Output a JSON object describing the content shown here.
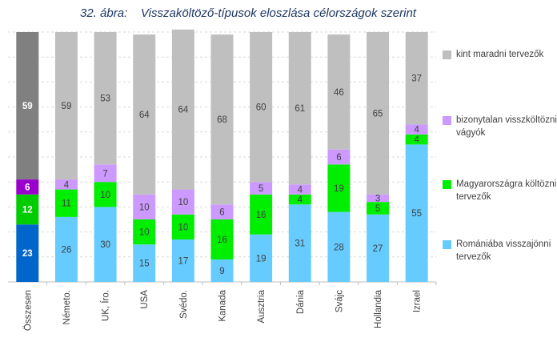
{
  "chart_data": {
    "type": "bar",
    "stacked": true,
    "title": "32. ábra:    Visszaköltöző-típusok eloszlása célországok szerint",
    "categories": [
      "Összesen",
      "Németo.",
      "UK, Íro.",
      "USA",
      "Svédo.",
      "Kanada",
      "Ausztria",
      "Dánia",
      "Svájc",
      "Hollandia",
      "Izrael"
    ],
    "series": [
      {
        "name": "Romániába visszajönni tervezők",
        "color": "#66ccff",
        "total_color": "#0066cc",
        "values": [
          23,
          26,
          30,
          15,
          17,
          9,
          19,
          31,
          28,
          27,
          55
        ]
      },
      {
        "name": "Magyarországra költözni tervezők",
        "color": "#00ee00",
        "total_color": "#00cc00",
        "values": [
          12,
          11,
          10,
          10,
          10,
          16,
          16,
          4,
          19,
          5,
          4
        ]
      },
      {
        "name": "bizonytalan visszköltözni vágyók",
        "color": "#cc99ff",
        "total_color": "#9900cc",
        "values": [
          6,
          4,
          7,
          10,
          10,
          6,
          5,
          4,
          6,
          3,
          4
        ]
      },
      {
        "name": "kint maradni tervezők",
        "color": "#bfbfbf",
        "total_color": "#808080",
        "values": [
          59,
          59,
          53,
          64,
          64,
          68,
          60,
          61,
          46,
          65,
          37
        ]
      }
    ],
    "ylim": [
      0,
      100
    ],
    "grid": true,
    "legend_position": "right"
  }
}
